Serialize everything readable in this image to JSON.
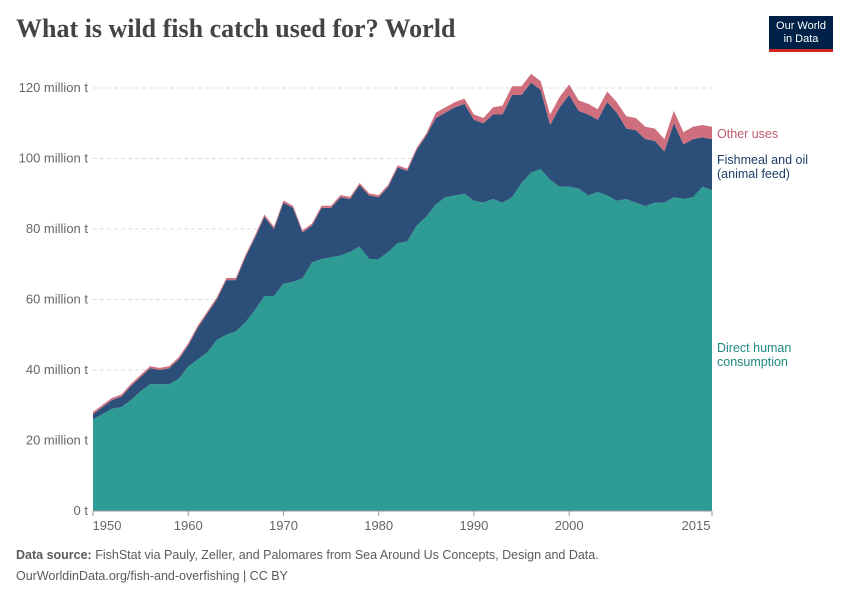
{
  "title": "What is wild fish catch used for? World",
  "logo": {
    "line1": "Our World",
    "line2": "in Data"
  },
  "footer": {
    "source_label": "Data source:",
    "source": "FishStat via Pauly, Zeller, and Palomares from Sea Around Us Concepts, Design and Data.",
    "url": "OurWorldinData.org/fish-and-overfishing | CC BY"
  },
  "chart_data": {
    "type": "area",
    "stacked": true,
    "xlim": [
      1950,
      2015
    ],
    "ylim": [
      0,
      120
    ],
    "x_ticks": [
      "1950",
      "1960",
      "1970",
      "1980",
      "1990",
      "2000",
      "2015"
    ],
    "y_ticks": [
      {
        "v": 0,
        "label": "0 t"
      },
      {
        "v": 20,
        "label": "20 million t"
      },
      {
        "v": 40,
        "label": "40 million t"
      },
      {
        "v": 60,
        "label": "60 million t"
      },
      {
        "v": 80,
        "label": "80 million t"
      },
      {
        "v": 100,
        "label": "100 million t"
      },
      {
        "v": 120,
        "label": "120 million t"
      }
    ],
    "grid": true,
    "legend": "right-labels",
    "unit": "million t",
    "x_start": 1950,
    "series": [
      {
        "name": "Direct human consumption",
        "label_lines": [
          "Direct human",
          "consumption"
        ],
        "color": "#2e9c94",
        "values": [
          26,
          27.5,
          29,
          29.5,
          31.5,
          34,
          36,
          36,
          36,
          37.5,
          41,
          43,
          45,
          48.5,
          50,
          51,
          53.5,
          57,
          61,
          61,
          64.5,
          65,
          66,
          70.5,
          71.5,
          72,
          72.5,
          73.5,
          75,
          71.5,
          71.5,
          73.5,
          76,
          76.5,
          81,
          83.5,
          87,
          89,
          89.5,
          90,
          88,
          87.5,
          88.5,
          87.5,
          89,
          93,
          96,
          97,
          94,
          92,
          92,
          91.5,
          89.5,
          90.5,
          89.5,
          88,
          88.5,
          87.5,
          86.5,
          87.5,
          87.5,
          89,
          88.5,
          89,
          92,
          91
        ]
      },
      {
        "name": "Fishmeal and oil (animal feed)",
        "label_lines": [
          "Fishmeal and oil",
          "(animal feed)"
        ],
        "color": "#2c4f7a",
        "values": [
          1.5,
          2,
          2.5,
          3,
          4,
          4,
          4.5,
          4,
          4.5,
          5.5,
          6,
          9,
          11,
          11.5,
          15.5,
          14.5,
          18.5,
          20.5,
          22.5,
          19,
          23,
          21,
          13,
          10.5,
          14.5,
          14,
          16.5,
          15,
          17.5,
          18,
          17.5,
          18.5,
          21.5,
          20,
          21.5,
          23,
          24.5,
          24,
          25,
          25.5,
          23,
          22.5,
          24,
          25,
          29,
          25,
          25.5,
          22.5,
          15.5,
          22.5,
          26,
          22,
          23,
          20.5,
          26.5,
          25,
          20,
          20.5,
          19,
          17.5,
          14.5,
          21,
          15.5,
          16.5,
          14,
          14.5
        ]
      },
      {
        "name": "Other uses",
        "label_lines": [
          "Other uses"
        ],
        "color": "#cf6f7e",
        "values": [
          0.6,
          0.6,
          0.6,
          0.6,
          0.6,
          0.6,
          0.6,
          0.6,
          0.6,
          0.6,
          0.6,
          0.6,
          0.6,
          0.6,
          0.6,
          0.6,
          0.6,
          0.6,
          0.6,
          0.6,
          0.6,
          0.6,
          0.6,
          0.6,
          0.6,
          0.6,
          0.6,
          0.6,
          0.6,
          0.6,
          0.6,
          0.6,
          0.6,
          0.6,
          0.6,
          0.6,
          1.5,
          1.5,
          1.5,
          1.5,
          1.5,
          1.5,
          2,
          2.5,
          2.5,
          2.5,
          2.5,
          2.5,
          3,
          3,
          3,
          3,
          3,
          3,
          3,
          3,
          3.5,
          3.5,
          3.5,
          3.5,
          3.5,
          3.5,
          3.5,
          3.5,
          3.5,
          3.5
        ]
      }
    ]
  }
}
